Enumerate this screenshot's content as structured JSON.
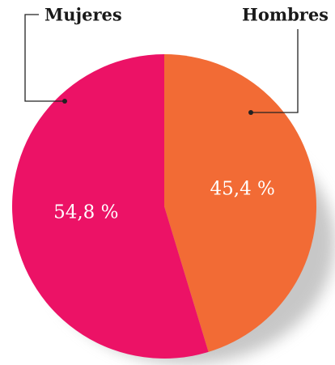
{
  "chart_data": {
    "type": "pie",
    "categories": [
      "Hombres",
      "Mujeres"
    ],
    "values": [
      45.4,
      54.8
    ],
    "value_labels": [
      "45,4 %",
      "54,8 %"
    ],
    "colors": [
      "#f26b35",
      "#ec1266"
    ]
  }
}
